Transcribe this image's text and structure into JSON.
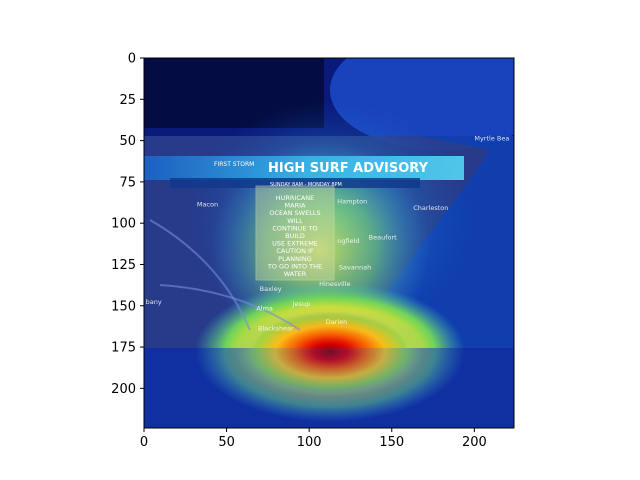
{
  "image_axes": {
    "x_ticks": [
      0,
      50,
      100,
      150,
      200
    ],
    "y_ticks": [
      0,
      25,
      50,
      75,
      100,
      125,
      150,
      175,
      200
    ],
    "x_range": [
      0,
      224
    ],
    "y_range": [
      0,
      224
    ]
  },
  "broadcast": {
    "station_logo": "FIRST STORM",
    "headline": "HIGH SURF ADVISORY",
    "timeframe": "SUNDAY 8AM - MONDAY 8PM",
    "message_lines": [
      "HURRICANE",
      "MARIA",
      "OCEAN SWELLS",
      "WILL",
      "CONTINUE TO",
      "BUILD",
      "USE EXTREME",
      "CAUTION IF",
      "PLANNING",
      "TO GO INTO THE",
      "WATER"
    ]
  },
  "map_labels": [
    {
      "text": "Macon",
      "x": 32,
      "y": 90
    },
    {
      "text": "Hampton",
      "x": 117,
      "y": 88
    },
    {
      "text": "Charleston",
      "x": 163,
      "y": 92
    },
    {
      "text": "Myrtle Bea",
      "x": 200,
      "y": 50
    },
    {
      "text": "Beaufort",
      "x": 136,
      "y": 110
    },
    {
      "text": "ngfield",
      "x": 117,
      "y": 112
    },
    {
      "text": "Savannah",
      "x": 118,
      "y": 128
    },
    {
      "text": "Baxley",
      "x": 70,
      "y": 141
    },
    {
      "text": "Hinesville",
      "x": 106,
      "y": 138
    },
    {
      "text": "Jesup",
      "x": 90,
      "y": 150
    },
    {
      "text": "Alma",
      "x": 68,
      "y": 153
    },
    {
      "text": "bany",
      "x": 1,
      "y": 149
    },
    {
      "text": "Blackshear",
      "x": 69,
      "y": 165
    },
    {
      "text": "Darien",
      "x": 110,
      "y": 161
    }
  ],
  "colors": {
    "heat_peak": "#b00000",
    "heat_base": "#00008b",
    "banner": "#2aa7e6",
    "panel": "#c9d9a0"
  }
}
